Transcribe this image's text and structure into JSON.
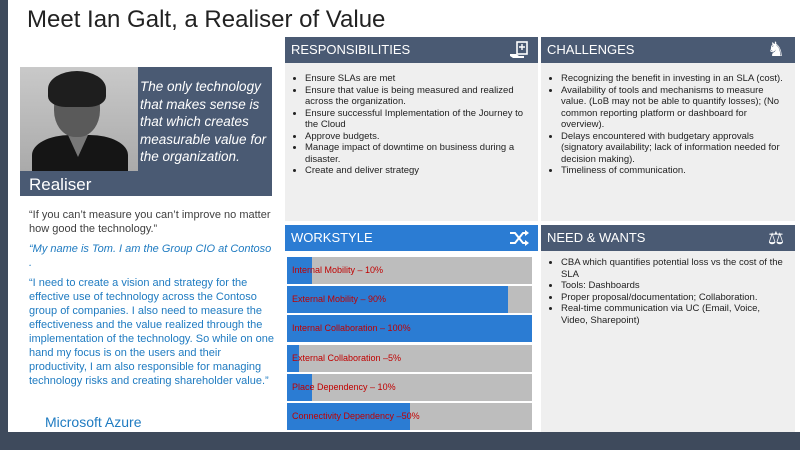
{
  "title": "Meet Ian Galt, a Realiser of Value",
  "persona": {
    "card_quote": "The only technology that makes sense is that which creates measurable value for the organization.",
    "role": "Realiser"
  },
  "quotes": {
    "q1": "“If you can’t measure you can’t improve no matter how good the technology.”",
    "q2": "“My name is Tom. I am the Group CIO at Contoso .",
    "q3": "“I need to create a vision and strategy for the effective use of technology across the Contoso group of companies. I also need to measure the effectiveness and the value realized through the implementation of the technology. So while on one hand my focus is on the users and their productivity, I am also responsible for managing technology risks and creating shareholder value.”"
  },
  "brand": "Microsoft Azure",
  "responsibilities": {
    "heading": "RESPONSIBILITIES",
    "icon": "hand-document-icon",
    "items": [
      "Ensure SLAs are met",
      "Ensure that value is being measured and realized across the organization.",
      "Ensure successful Implementation of the Journey to the Cloud",
      "Approve budgets.",
      "Manage impact of downtime on business during a disaster.",
      "Create and deliver strategy"
    ]
  },
  "challenges": {
    "heading": "CHALLENGES",
    "icon": "chess-knight-icon",
    "items": [
      "Recognizing the benefit in investing in an SLA (cost).",
      "Availability of tools and mechanisms  to measure value. (LoB may not be able to quantify losses); (No common reporting platform or dashboard for overview).",
      "Delays encountered with budgetary approvals (signatory availability; lack of information needed for decision making).",
      "Timeliness of communication."
    ]
  },
  "workstyle": {
    "heading": "WORKSTYLE",
    "icon": "shuffle-arrows-icon",
    "bars": [
      {
        "label": "Internal Mobility – 10%",
        "value": 0.1
      },
      {
        "label": "External Mobility – 90%",
        "value": 0.9
      },
      {
        "label": "Internal Collaboration – 100%",
        "value": 1.0
      },
      {
        "label": "External Collaboration –5%",
        "value": 0.05
      },
      {
        "label": "Place Dependency – 10%",
        "value": 0.1
      },
      {
        "label": "Connectivity Dependency –50%",
        "value": 0.5
      }
    ]
  },
  "needs": {
    "heading": "NEED & WANTS",
    "icon": "balance-scale-icon",
    "items": [
      "CBA which quantifies potential loss vs the cost of the SLA",
      "Tools: Dashboards",
      "Proper proposal/documentation; Collaboration.",
      "Real-time communication via UC (Email, Voice, Video, Sharepoint)"
    ]
  }
}
